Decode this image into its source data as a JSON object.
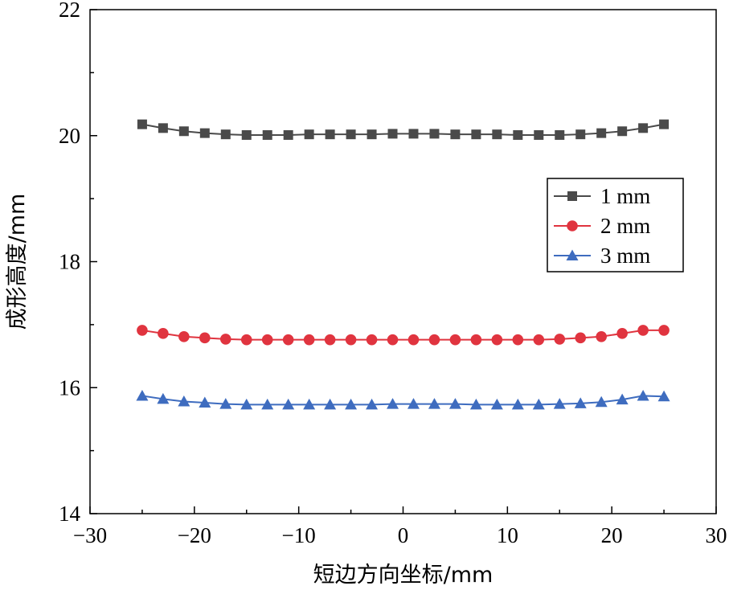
{
  "chart_data": {
    "type": "line",
    "title": "",
    "xlabel": "短边方向坐标/mm",
    "ylabel": "成形高度/mm",
    "xlim": [
      -30,
      30
    ],
    "ylim": [
      14,
      22
    ],
    "x_ticks": [
      -30,
      -20,
      -10,
      0,
      10,
      20,
      30
    ],
    "y_ticks": [
      14,
      16,
      18,
      20,
      22
    ],
    "x_tick_labels": [
      "−30",
      "−20",
      "−10",
      "0",
      "10",
      "20",
      "30"
    ],
    "y_tick_labels": [
      "14",
      "16",
      "18",
      "20",
      "22"
    ],
    "grid": false,
    "legend_position": "right",
    "x": [
      -25,
      -23,
      -21,
      -19,
      -17,
      -15,
      -13,
      -11,
      -9,
      -7,
      -5,
      -3,
      -1,
      1,
      3,
      5,
      7,
      9,
      11,
      13,
      15,
      17,
      19,
      21,
      23,
      25
    ],
    "series": [
      {
        "name": "1 mm",
        "color": "#4a4a4a",
        "marker": "square",
        "values": [
          20.18,
          20.12,
          20.07,
          20.04,
          20.02,
          20.01,
          20.01,
          20.01,
          20.02,
          20.02,
          20.02,
          20.02,
          20.03,
          20.03,
          20.03,
          20.02,
          20.02,
          20.02,
          20.01,
          20.01,
          20.01,
          20.02,
          20.04,
          20.07,
          20.12,
          20.18
        ]
      },
      {
        "name": "2 mm",
        "color": "#e0343f",
        "marker": "circle",
        "values": [
          16.91,
          16.86,
          16.81,
          16.79,
          16.77,
          16.76,
          16.76,
          16.76,
          16.76,
          16.76,
          16.76,
          16.76,
          16.76,
          16.76,
          16.76,
          16.76,
          16.76,
          16.76,
          16.76,
          16.76,
          16.77,
          16.79,
          16.81,
          16.86,
          16.91,
          16.91
        ]
      },
      {
        "name": "3 mm",
        "color": "#3e6cbf",
        "marker": "triangle",
        "values": [
          15.87,
          15.82,
          15.78,
          15.76,
          15.74,
          15.73,
          15.73,
          15.73,
          15.73,
          15.73,
          15.73,
          15.73,
          15.74,
          15.74,
          15.74,
          15.74,
          15.73,
          15.73,
          15.73,
          15.73,
          15.74,
          15.75,
          15.77,
          15.81,
          15.87,
          15.86
        ]
      }
    ]
  }
}
